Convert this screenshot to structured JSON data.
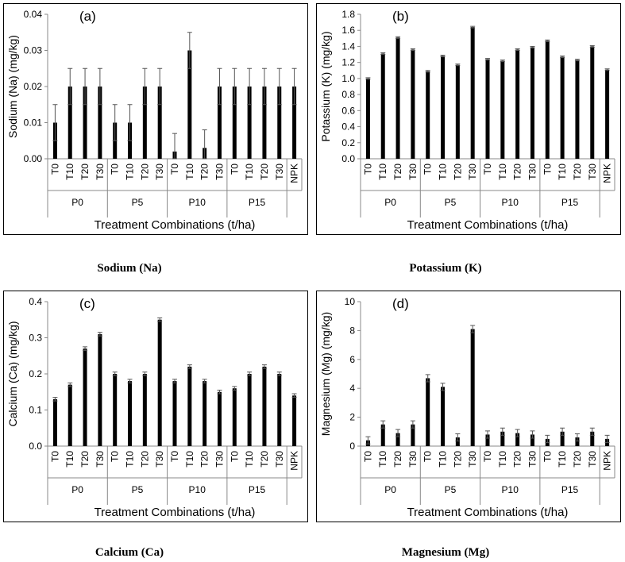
{
  "captions": [
    "Sodium (Na)",
    "Potassium (K)",
    "Calcium (Ca)",
    "Magnesium (Mg)"
  ],
  "chart_data": [
    {
      "type": "bar",
      "panel": "(a)",
      "ylabel": "Sodium (Na) (mg/kg)",
      "xlabel": "Treatment Combinations (t/ha)",
      "ylim": [
        0,
        0.04
      ],
      "yticks": [
        "0.00",
        "0.01",
        "0.02",
        "0.03",
        "0.04"
      ],
      "groups": [
        {
          "name": "P0",
          "categories": [
            "T0",
            "T10",
            "T20",
            "T30"
          ]
        },
        {
          "name": "P5",
          "categories": [
            "T0",
            "T10",
            "T20",
            "T30"
          ]
        },
        {
          "name": "P10",
          "categories": [
            "T0",
            "T10",
            "T20",
            "T30"
          ]
        },
        {
          "name": "P15",
          "categories": [
            "T0",
            "T10",
            "T20",
            "T30"
          ]
        },
        {
          "name": "",
          "categories": [
            "NPK"
          ]
        }
      ],
      "values": [
        0.01,
        0.02,
        0.02,
        0.02,
        0.01,
        0.01,
        0.02,
        0.02,
        0.002,
        0.03,
        0.003,
        0.02,
        0.02,
        0.02,
        0.02,
        0.02,
        0.02
      ],
      "errors": [
        0.005,
        0.005,
        0.005,
        0.005,
        0.005,
        0.005,
        0.005,
        0.005,
        0.005,
        0.005,
        0.005,
        0.005,
        0.005,
        0.005,
        0.005,
        0.005,
        0.005
      ]
    },
    {
      "type": "bar",
      "panel": "(b)",
      "ylabel": "Potassium (K) (mg/kg)",
      "xlabel": "Treatment Combinations (t/ha)",
      "ylim": [
        0,
        1.8
      ],
      "yticks": [
        "0.0",
        "0.2",
        "0.4",
        "0.6",
        "0.8",
        "1.0",
        "1.2",
        "1.4",
        "1.6",
        "1.8"
      ],
      "groups": [
        {
          "name": "P0",
          "categories": [
            "T0",
            "T10",
            "T20",
            "T30"
          ]
        },
        {
          "name": "P5",
          "categories": [
            "T0",
            "T10",
            "T20",
            "T30"
          ]
        },
        {
          "name": "P10",
          "categories": [
            "T0",
            "T10",
            "T20",
            "T30"
          ]
        },
        {
          "name": "P15",
          "categories": [
            "T0",
            "T10",
            "T20",
            "T30"
          ]
        },
        {
          "name": "",
          "categories": [
            "NPK"
          ]
        }
      ],
      "values": [
        1.0,
        1.31,
        1.51,
        1.36,
        1.09,
        1.28,
        1.17,
        1.64,
        1.24,
        1.22,
        1.36,
        1.39,
        1.47,
        1.27,
        1.23,
        1.4,
        1.11
      ],
      "errors": [
        0.01,
        0.01,
        0.01,
        0.01,
        0.01,
        0.01,
        0.01,
        0.01,
        0.01,
        0.01,
        0.01,
        0.01,
        0.01,
        0.01,
        0.01,
        0.01,
        0.01
      ]
    },
    {
      "type": "bar",
      "panel": "(c)",
      "ylabel": "Calcium (Ca) (mg/kg)",
      "xlabel": "Treatment Combinations (t/ha)",
      "ylim": [
        0,
        0.4
      ],
      "yticks": [
        "0.0",
        "0.1",
        "0.2",
        "0.3",
        "0.4"
      ],
      "groups": [
        {
          "name": "P0",
          "categories": [
            "T0",
            "T10",
            "T20",
            "T30"
          ]
        },
        {
          "name": "P5",
          "categories": [
            "T0",
            "T10",
            "T20",
            "T30"
          ]
        },
        {
          "name": "P10",
          "categories": [
            "T0",
            "T10",
            "T20",
            "T30"
          ]
        },
        {
          "name": "P15",
          "categories": [
            "T0",
            "T10",
            "T20",
            "T30"
          ]
        },
        {
          "name": "",
          "categories": [
            "NPK"
          ]
        }
      ],
      "values": [
        0.13,
        0.17,
        0.27,
        0.31,
        0.2,
        0.18,
        0.2,
        0.35,
        0.18,
        0.22,
        0.18,
        0.15,
        0.16,
        0.2,
        0.22,
        0.2,
        0.14
      ],
      "errors": [
        0.005,
        0.005,
        0.005,
        0.005,
        0.005,
        0.005,
        0.005,
        0.005,
        0.005,
        0.005,
        0.005,
        0.005,
        0.005,
        0.005,
        0.005,
        0.005,
        0.005
      ]
    },
    {
      "type": "bar",
      "panel": "(d)",
      "ylabel": "Magnesium (Mg) (mg/kg)",
      "xlabel": "Treatment Combinations (t/ha)",
      "ylim": [
        0,
        10
      ],
      "yticks": [
        "0",
        "2",
        "4",
        "6",
        "8",
        "10"
      ],
      "groups": [
        {
          "name": "P0",
          "categories": [
            "T0",
            "T10",
            "T20",
            "T30"
          ]
        },
        {
          "name": "P5",
          "categories": [
            "T0",
            "T10",
            "T20",
            "T30"
          ]
        },
        {
          "name": "P10",
          "categories": [
            "T0",
            "T10",
            "T20",
            "T30"
          ]
        },
        {
          "name": "P15",
          "categories": [
            "T0",
            "T10",
            "T20",
            "T30"
          ]
        },
        {
          "name": "",
          "categories": [
            "NPK"
          ]
        }
      ],
      "values": [
        0.4,
        1.5,
        0.9,
        1.5,
        4.7,
        4.1,
        0.6,
        8.1,
        0.8,
        1.0,
        0.9,
        0.8,
        0.5,
        1.0,
        0.6,
        1.0,
        0.5
      ],
      "errors": [
        0.25,
        0.25,
        0.25,
        0.25,
        0.25,
        0.25,
        0.25,
        0.25,
        0.25,
        0.25,
        0.25,
        0.25,
        0.25,
        0.25,
        0.25,
        0.25,
        0.25
      ]
    }
  ]
}
